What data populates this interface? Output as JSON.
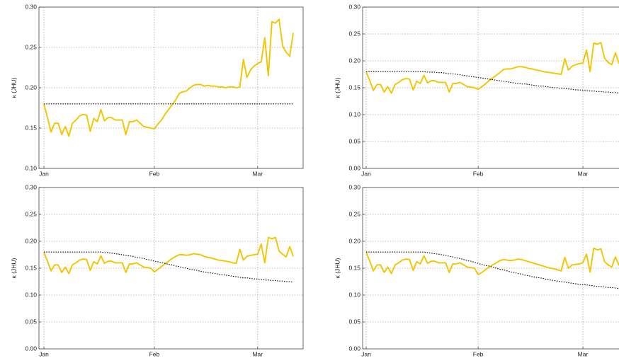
{
  "chart_data": [
    {
      "type": "line",
      "y_label": "κ (JHU)",
      "grid": true,
      "categories": [
        "Jan",
        null,
        null,
        null,
        null,
        null,
        null,
        null,
        null,
        null,
        null,
        null,
        null,
        null,
        null,
        null,
        null,
        null,
        null,
        null,
        null,
        null,
        null,
        null,
        null,
        null,
        null,
        null,
        null,
        null,
        null,
        "Feb",
        null,
        null,
        null,
        null,
        null,
        null,
        null,
        null,
        null,
        null,
        null,
        null,
        null,
        null,
        null,
        null,
        null,
        null,
        null,
        null,
        null,
        null,
        null,
        null,
        null,
        null,
        null,
        null,
        "Mar",
        null,
        null,
        null,
        null,
        null,
        null,
        null,
        null,
        null,
        null
      ],
      "ylim": [
        0.1,
        0.3
      ],
      "yticks": [
        {
          "value": 0.1,
          "label": "0.10"
        },
        0.15,
        {
          "value": 0.2,
          "label": "0.20"
        },
        0.25,
        {
          "value": 0.3,
          "label": "0.30"
        }
      ],
      "series": [
        {
          "color": "#f2c500",
          "line_style": "solid",
          "values": [
            0.18,
            0.163,
            0.145,
            0.156,
            0.156,
            0.142,
            0.152,
            0.14,
            0.156,
            0.16,
            0.165,
            0.167,
            0.166,
            0.146,
            0.162,
            0.158,
            0.173,
            0.159,
            0.163,
            0.163,
            0.16,
            0.16,
            0.16,
            0.142,
            0.158,
            0.158,
            0.16,
            0.156,
            0.152,
            0.151,
            0.15,
            0.149,
            0.155,
            0.16,
            0.167,
            0.173,
            0.179,
            0.185,
            0.193,
            0.195,
            0.196,
            0.2,
            0.203,
            0.204,
            0.204,
            0.202,
            0.203,
            0.202,
            0.202,
            0.201,
            0.201,
            0.2,
            0.201,
            0.201,
            0.2,
            0.201,
            0.235,
            0.213,
            0.222,
            0.227,
            0.23,
            0.232,
            0.262,
            0.215,
            0.282,
            0.28,
            0.285,
            0.252,
            0.244,
            0.239,
            0.268
          ]
        },
        {
          "color": "#000000",
          "line_style": "dotted",
          "values": [
            0.18,
            0.18,
            0.18,
            0.18,
            0.18,
            0.18,
            0.18,
            0.18,
            0.18,
            0.18,
            0.18,
            0.18,
            0.18,
            0.18,
            0.18,
            0.18,
            0.18,
            0.18,
            0.18,
            0.18,
            0.18,
            0.18,
            0.18,
            0.18,
            0.18,
            0.18,
            0.18,
            0.18,
            0.18,
            0.18,
            0.18,
            0.18,
            0.18,
            0.18,
            0.18,
            0.18,
            0.18,
            0.18,
            0.18,
            0.18,
            0.18,
            0.18,
            0.18,
            0.18,
            0.18,
            0.18,
            0.18,
            0.18,
            0.18,
            0.18,
            0.18,
            0.18,
            0.18,
            0.18,
            0.18,
            0.18,
            0.18,
            0.18,
            0.18,
            0.18,
            0.18,
            0.18,
            0.18,
            0.18,
            0.18,
            0.18,
            0.18,
            0.18,
            0.18,
            0.18,
            0.18
          ]
        }
      ]
    },
    {
      "type": "line",
      "y_label": "κ (JHU)",
      "grid": true,
      "categories": [
        "Jan",
        null,
        null,
        null,
        null,
        null,
        null,
        null,
        null,
        null,
        null,
        null,
        null,
        null,
        null,
        null,
        null,
        null,
        null,
        null,
        null,
        null,
        null,
        null,
        null,
        null,
        null,
        null,
        null,
        null,
        null,
        "Feb",
        null,
        null,
        null,
        null,
        null,
        null,
        null,
        null,
        null,
        null,
        null,
        null,
        null,
        null,
        null,
        null,
        null,
        null,
        null,
        null,
        null,
        null,
        null,
        null,
        null,
        null,
        null,
        null,
        "Mar",
        null,
        null,
        null,
        null,
        null,
        null,
        null,
        null,
        null,
        null
      ],
      "ylim": [
        0,
        0.3
      ],
      "yticks": [
        {
          "value": 0,
          "label": "0.00"
        },
        0.05,
        {
          "value": 0.1,
          "label": "0.10"
        },
        0.15,
        {
          "value": 0.2,
          "label": "0.20"
        },
        0.25,
        {
          "value": 0.3,
          "label": "0.30"
        }
      ],
      "series": [
        {
          "color": "#f2c500",
          "line_style": "solid",
          "values": [
            0.18,
            0.163,
            0.145,
            0.156,
            0.156,
            0.142,
            0.152,
            0.14,
            0.156,
            0.16,
            0.165,
            0.167,
            0.166,
            0.146,
            0.162,
            0.158,
            0.173,
            0.159,
            0.163,
            0.163,
            0.16,
            0.16,
            0.16,
            0.142,
            0.158,
            0.158,
            0.16,
            0.156,
            0.152,
            0.151,
            0.15,
            0.147,
            0.152,
            0.157,
            0.163,
            0.168,
            0.173,
            0.178,
            0.184,
            0.185,
            0.185,
            0.187,
            0.189,
            0.189,
            0.188,
            0.186,
            0.185,
            0.183,
            0.182,
            0.18,
            0.179,
            0.178,
            0.177,
            0.176,
            0.175,
            0.204,
            0.183,
            0.19,
            0.193,
            0.195,
            0.196,
            0.22,
            0.18,
            0.233,
            0.231,
            0.234,
            0.205,
            0.197,
            0.193,
            0.215,
            0.195
          ]
        },
        {
          "color": "#000000",
          "line_style": "dotted",
          "values": [
            0.18,
            0.18,
            0.18,
            0.18,
            0.18,
            0.18,
            0.18,
            0.18,
            0.18,
            0.18,
            0.18,
            0.18,
            0.18,
            0.18,
            0.18,
            0.18,
            0.18,
            0.179,
            0.179,
            0.179,
            0.178,
            0.178,
            0.177,
            0.176,
            0.176,
            0.175,
            0.174,
            0.173,
            0.172,
            0.171,
            0.17,
            0.169,
            0.168,
            0.167,
            0.166,
            0.165,
            0.164,
            0.163,
            0.162,
            0.161,
            0.16,
            0.159,
            0.158,
            0.157,
            0.157,
            0.156,
            0.155,
            0.154,
            0.153,
            0.153,
            0.152,
            0.151,
            0.15,
            0.15,
            0.149,
            0.148,
            0.148,
            0.147,
            0.146,
            0.146,
            0.145,
            0.145,
            0.144,
            0.144,
            0.143,
            0.143,
            0.142,
            0.142,
            0.141,
            0.141,
            0.14
          ]
        }
      ]
    },
    {
      "type": "line",
      "y_label": "κ (JHU)",
      "grid": true,
      "categories": [
        "Jan",
        null,
        null,
        null,
        null,
        null,
        null,
        null,
        null,
        null,
        null,
        null,
        null,
        null,
        null,
        null,
        null,
        null,
        null,
        null,
        null,
        null,
        null,
        null,
        null,
        null,
        null,
        null,
        null,
        null,
        null,
        "Feb",
        null,
        null,
        null,
        null,
        null,
        null,
        null,
        null,
        null,
        null,
        null,
        null,
        null,
        null,
        null,
        null,
        null,
        null,
        null,
        null,
        null,
        null,
        null,
        null,
        null,
        null,
        null,
        null,
        "Mar",
        null,
        null,
        null,
        null,
        null,
        null,
        null,
        null,
        null,
        null
      ],
      "ylim": [
        0,
        0.3
      ],
      "yticks": [
        {
          "value": 0,
          "label": "0.00"
        },
        0.05,
        {
          "value": 0.1,
          "label": "0.10"
        },
        0.15,
        {
          "value": 0.2,
          "label": "0.20"
        },
        0.25,
        {
          "value": 0.3,
          "label": "0.30"
        }
      ],
      "series": [
        {
          "color": "#f2c500",
          "line_style": "solid",
          "values": [
            0.18,
            0.163,
            0.145,
            0.156,
            0.156,
            0.142,
            0.152,
            0.14,
            0.156,
            0.16,
            0.165,
            0.167,
            0.166,
            0.146,
            0.162,
            0.158,
            0.173,
            0.159,
            0.163,
            0.163,
            0.16,
            0.16,
            0.16,
            0.142,
            0.158,
            0.158,
            0.16,
            0.156,
            0.152,
            0.151,
            0.15,
            0.143,
            0.148,
            0.153,
            0.158,
            0.163,
            0.168,
            0.172,
            0.175,
            0.175,
            0.174,
            0.175,
            0.177,
            0.176,
            0.175,
            0.172,
            0.17,
            0.169,
            0.167,
            0.165,
            0.164,
            0.163,
            0.162,
            0.16,
            0.159,
            0.185,
            0.165,
            0.172,
            0.174,
            0.175,
            0.176,
            0.195,
            0.16,
            0.207,
            0.205,
            0.207,
            0.182,
            0.176,
            0.171,
            0.19,
            0.172
          ]
        },
        {
          "color": "#000000",
          "line_style": "dotted",
          "values": [
            0.18,
            0.18,
            0.18,
            0.18,
            0.18,
            0.18,
            0.18,
            0.18,
            0.18,
            0.18,
            0.18,
            0.18,
            0.18,
            0.18,
            0.18,
            0.18,
            0.18,
            0.179,
            0.179,
            0.178,
            0.177,
            0.176,
            0.175,
            0.174,
            0.173,
            0.172,
            0.17,
            0.169,
            0.168,
            0.166,
            0.165,
            0.163,
            0.162,
            0.16,
            0.159,
            0.157,
            0.156,
            0.154,
            0.153,
            0.151,
            0.15,
            0.148,
            0.147,
            0.146,
            0.144,
            0.143,
            0.142,
            0.141,
            0.14,
            0.139,
            0.138,
            0.137,
            0.136,
            0.135,
            0.134,
            0.133,
            0.132,
            0.132,
            0.131,
            0.13,
            0.13,
            0.129,
            0.128,
            0.128,
            0.127,
            0.127,
            0.126,
            0.126,
            0.125,
            0.125,
            0.124
          ]
        }
      ]
    },
    {
      "type": "line",
      "y_label": "κ (JHU)",
      "grid": true,
      "categories": [
        "Jan",
        null,
        null,
        null,
        null,
        null,
        null,
        null,
        null,
        null,
        null,
        null,
        null,
        null,
        null,
        null,
        null,
        null,
        null,
        null,
        null,
        null,
        null,
        null,
        null,
        null,
        null,
        null,
        null,
        null,
        null,
        "Feb",
        null,
        null,
        null,
        null,
        null,
        null,
        null,
        null,
        null,
        null,
        null,
        null,
        null,
        null,
        null,
        null,
        null,
        null,
        null,
        null,
        null,
        null,
        null,
        null,
        null,
        null,
        null,
        null,
        "Mar",
        null,
        null,
        null,
        null,
        null,
        null,
        null,
        null,
        null,
        null
      ],
      "ylim": [
        0,
        0.3
      ],
      "yticks": [
        {
          "value": 0,
          "label": "0.00"
        },
        0.05,
        {
          "value": 0.1,
          "label": "0.10"
        },
        0.15,
        {
          "value": 0.2,
          "label": "0.20"
        },
        0.25,
        {
          "value": 0.3,
          "label": "0.30"
        }
      ],
      "series": [
        {
          "color": "#f2c500",
          "line_style": "solid",
          "values": [
            0.18,
            0.163,
            0.145,
            0.156,
            0.156,
            0.142,
            0.152,
            0.14,
            0.156,
            0.16,
            0.165,
            0.167,
            0.166,
            0.146,
            0.162,
            0.158,
            0.173,
            0.159,
            0.163,
            0.163,
            0.16,
            0.16,
            0.16,
            0.142,
            0.158,
            0.158,
            0.16,
            0.156,
            0.152,
            0.151,
            0.15,
            0.138,
            0.142,
            0.147,
            0.152,
            0.156,
            0.16,
            0.164,
            0.166,
            0.165,
            0.164,
            0.165,
            0.167,
            0.166,
            0.164,
            0.162,
            0.16,
            0.158,
            0.156,
            0.154,
            0.152,
            0.15,
            0.149,
            0.147,
            0.145,
            0.17,
            0.15,
            0.156,
            0.157,
            0.158,
            0.16,
            0.176,
            0.143,
            0.187,
            0.184,
            0.186,
            0.162,
            0.156,
            0.152,
            0.171,
            0.155
          ]
        },
        {
          "color": "#000000",
          "line_style": "dotted",
          "values": [
            0.18,
            0.18,
            0.18,
            0.18,
            0.18,
            0.18,
            0.18,
            0.18,
            0.18,
            0.18,
            0.18,
            0.18,
            0.18,
            0.18,
            0.18,
            0.18,
            0.18,
            0.179,
            0.178,
            0.177,
            0.176,
            0.175,
            0.174,
            0.172,
            0.171,
            0.169,
            0.168,
            0.166,
            0.164,
            0.163,
            0.161,
            0.159,
            0.157,
            0.155,
            0.154,
            0.152,
            0.15,
            0.148,
            0.147,
            0.145,
            0.143,
            0.142,
            0.14,
            0.139,
            0.137,
            0.136,
            0.134,
            0.133,
            0.132,
            0.131,
            0.129,
            0.128,
            0.127,
            0.126,
            0.125,
            0.124,
            0.123,
            0.122,
            0.121,
            0.12,
            0.119,
            0.119,
            0.118,
            0.117,
            0.116,
            0.116,
            0.115,
            0.114,
            0.114,
            0.113,
            0.112
          ]
        }
      ]
    }
  ]
}
